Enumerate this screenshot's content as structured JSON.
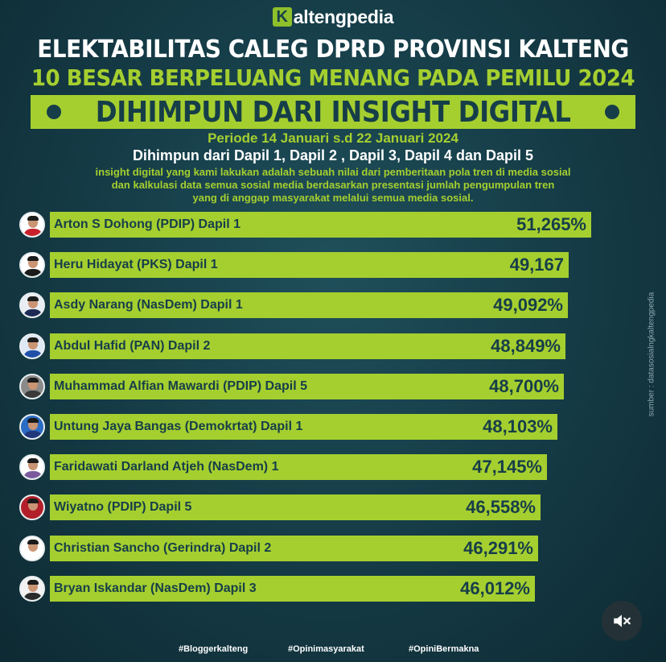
{
  "brand": {
    "k": "K",
    "text": "altengpedia"
  },
  "header": {
    "title": "ELEKTABILITAS CALEG DPRD PROVINSI KALTENG",
    "subtitle": "10 BESAR BERPELUANG MENANG PADA PEMILU 2024",
    "banner": "DIHIMPUN DARI INSIGHT DIGITAL",
    "period": "Periode 14 Januari s.d 22 Januari 2024",
    "dapil": "Dihimpun dari Dapil 1, Dapil 2 , Dapil 3, Dapil 4 dan Dapil 5",
    "description": [
      "insight digital yang kami lakukan adalah sebuah nilai dari pemberitaan pola tren di media sosial",
      "dan kalkulasi data semua sosial media berdasarkan presentasi jumlah pengumpulan tren",
      "yang di anggap masyarakat melalui semua media sosial."
    ]
  },
  "chart_data": {
    "type": "bar",
    "orientation": "horizontal",
    "categories": [
      "Arton S Dohong (PDIP) Dapil 1",
      "Heru Hidayat (PKS) Dapil 1",
      "Asdy Narang (NasDem) Dapil 1",
      "Abdul Hafid (PAN) Dapil 2",
      "Muhammad Alfian Mawardi (PDIP) Dapil 5",
      "Untung Jaya Bangas (Demokrtat) Dapil 1",
      "Faridawati Darland Atjeh (NasDem) 1",
      "Wiyatno (PDIP) Dapil 5",
      "Christian Sancho (Gerindra) Dapil 2",
      "Bryan Iskandar (NasDem) Dapil 3"
    ],
    "values": [
      51.265,
      49.167,
      49.092,
      48.849,
      48.7,
      48.103,
      47.145,
      46.558,
      46.291,
      46.012
    ],
    "value_labels": [
      "51,265%",
      "49,167",
      "49,092%",
      "48,849%",
      "48,700%",
      "48,103%",
      "47,145%",
      "46,558%",
      "46,291%",
      "46,012%"
    ],
    "bar_color": "#a5cf2f",
    "grid": false
  },
  "avatars": [
    {
      "shirt": "#c8202a",
      "bg": "#ffffff"
    },
    {
      "shirt": "#1b1b1b",
      "bg": "#ffffff"
    },
    {
      "shirt": "#1c2a55",
      "bg": "#e9eef3"
    },
    {
      "shirt": "#1f4fa8",
      "bg": "#dfe8f5"
    },
    {
      "shirt": "#3a3a3a",
      "bg": "#8a8a8a"
    },
    {
      "shirt": "#20387a",
      "bg": "#2a6cc4"
    },
    {
      "shirt": "#7a5a9c",
      "bg": "#ffffff"
    },
    {
      "shirt": "#b21f2a",
      "bg": "#b21f2a"
    },
    {
      "shirt": "#ffffff",
      "bg": "#ffffff"
    },
    {
      "shirt": "#2b2b2b",
      "bg": "#f2f2f2"
    }
  ],
  "source": "sumber : datasosialngkaltengpedia",
  "hashtags": [
    "#Bloggerkalteng",
    "#Opinimasyarakat",
    "#OpiniBermakna"
  ],
  "colors": {
    "background": "#163e49",
    "accent": "#a5cf2f",
    "text_dark": "#163e49"
  },
  "icons": {
    "mute": "speaker-muted-icon"
  }
}
